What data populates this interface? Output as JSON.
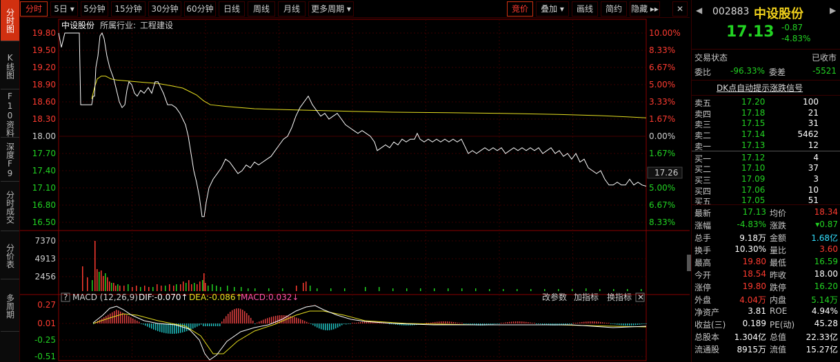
{
  "left_tabs": [
    {
      "label": "分时图",
      "name": "tab-timeshare"
    },
    {
      "label": "K线图",
      "name": "tab-kline"
    },
    {
      "label": "F10资料",
      "name": "tab-f10"
    },
    {
      "label": "深度F9",
      "name": "tab-depth"
    },
    {
      "label": "分时成交",
      "name": "tab-timeshare-trades"
    },
    {
      "label": "分价表",
      "name": "tab-price-table"
    },
    {
      "label": "多周期",
      "name": "tab-multi-period"
    }
  ],
  "toolbar": {
    "periods": [
      "分时",
      "5日 ▾",
      "5分钟",
      "15分钟",
      "30分钟",
      "60分钟",
      "日线",
      "周线",
      "月线",
      "更多周期 ▾"
    ],
    "right_buttons": [
      "竞价",
      "叠加 ▾",
      "画线",
      "简约",
      "隐藏 ▸▸"
    ]
  },
  "chart": {
    "stock_name": "中设股份",
    "industry_label": "所属行业:",
    "industry": "工程建设",
    "price_ticks": [
      "19.80",
      "19.50",
      "19.20",
      "18.90",
      "18.60",
      "18.30",
      "18.00",
      "17.70",
      "17.40",
      "17.10",
      "16.80",
      "16.50"
    ],
    "pct_ticks": [
      "10.00%",
      "8.33%",
      "6.67%",
      "5.00%",
      "3.33%",
      "1.67%",
      "0.00%",
      "1.67%",
      "3.33%",
      "5.00%",
      "6.67%",
      "8.33%"
    ],
    "current_price_tag": "17.26",
    "volume_ticks": [
      "7370",
      "4913",
      "2456"
    ],
    "macd_ticks": [
      "0.27",
      "0.01",
      "-0.25",
      "-0.51"
    ],
    "macd_title": "MACD (12,26,9)",
    "macd_help": "?",
    "dif": "DIF:-0.070↑",
    "dea": "DEA:-0.086↑",
    "macd": "MACD:0.032↓",
    "macd_buttons": [
      "改参数",
      "加指标",
      "换指标"
    ],
    "colors": {
      "up": "#ff3b30",
      "down": "#22d322",
      "price_line": "#ffffff",
      "avg_line": "#e8e020",
      "macd_up": "#e04040",
      "macd_down": "#20c0c0"
    }
  },
  "quote": {
    "code": "002883",
    "name": "中设股份",
    "price": "17.13",
    "change": "-0.87",
    "change_pct": "-4.83%",
    "trade_status_label": "交易状态",
    "trade_status": "已收市",
    "weibi_label": "委比",
    "weibi": "-96.33%",
    "weicha_label": "委差",
    "weicha": "-5521",
    "signal_link": "DK点自动提示涨跌信号",
    "asks": [
      {
        "label": "卖五",
        "price": "17.20",
        "vol": "100"
      },
      {
        "label": "卖四",
        "price": "17.18",
        "vol": "21"
      },
      {
        "label": "卖三",
        "price": "17.15",
        "vol": "31"
      },
      {
        "label": "卖二",
        "price": "17.14",
        "vol": "5462"
      },
      {
        "label": "卖一",
        "price": "17.13",
        "vol": "12"
      }
    ],
    "bids": [
      {
        "label": "买一",
        "price": "17.12",
        "vol": "4"
      },
      {
        "label": "买二",
        "price": "17.10",
        "vol": "37"
      },
      {
        "label": "买三",
        "price": "17.09",
        "vol": "3"
      },
      {
        "label": "买四",
        "price": "17.06",
        "vol": "10"
      },
      {
        "label": "买五",
        "price": "17.05",
        "vol": "51"
      }
    ],
    "stats": [
      {
        "l1": "最新",
        "v1": "17.13",
        "c1": "green",
        "l2": "均价",
        "v2": "18.34",
        "c2": "red"
      },
      {
        "l1": "涨幅",
        "v1": "-4.83%",
        "c1": "green",
        "l2": "涨跌",
        "v2": "▾0.87",
        "c2": "green"
      },
      {
        "l1": "总手",
        "v1": "9.18万",
        "c1": "white",
        "l2": "金额",
        "v2": "1.68亿",
        "c2": "cyan"
      },
      {
        "l1": "换手",
        "v1": "10.30%",
        "c1": "white",
        "l2": "量比",
        "v2": "3.60",
        "c2": "red"
      },
      {
        "l1": "最高",
        "v1": "19.80",
        "c1": "red",
        "l2": "最低",
        "v2": "16.59",
        "c2": "green"
      },
      {
        "l1": "今开",
        "v1": "18.54",
        "c1": "red",
        "l2": "昨收",
        "v2": "18.00",
        "c2": "white"
      },
      {
        "l1": "涨停",
        "v1": "19.80",
        "c1": "red",
        "l2": "跌停",
        "v2": "16.20",
        "c2": "green"
      },
      {
        "l1": "外盘",
        "v1": "4.04万",
        "c1": "red",
        "l2": "内盘",
        "v2": "5.14万",
        "c2": "green"
      },
      {
        "l1": "净资产",
        "v1": "3.81",
        "c1": "white",
        "l2": "ROE",
        "v2": "4.94%",
        "c2": "white"
      },
      {
        "l1": "收益(三)",
        "v1": "0.189",
        "c1": "white",
        "l2": "PE(动)",
        "v2": "45.28",
        "c2": "white"
      },
      {
        "l1": "总股本",
        "v1": "1.304亿",
        "c1": "white",
        "l2": "总值",
        "v2": "22.33亿",
        "c2": "white"
      },
      {
        "l1": "流通股",
        "v1": "8915万",
        "c1": "white",
        "l2": "流值",
        "v2": "15.27亿",
        "c2": "white"
      }
    ]
  }
}
